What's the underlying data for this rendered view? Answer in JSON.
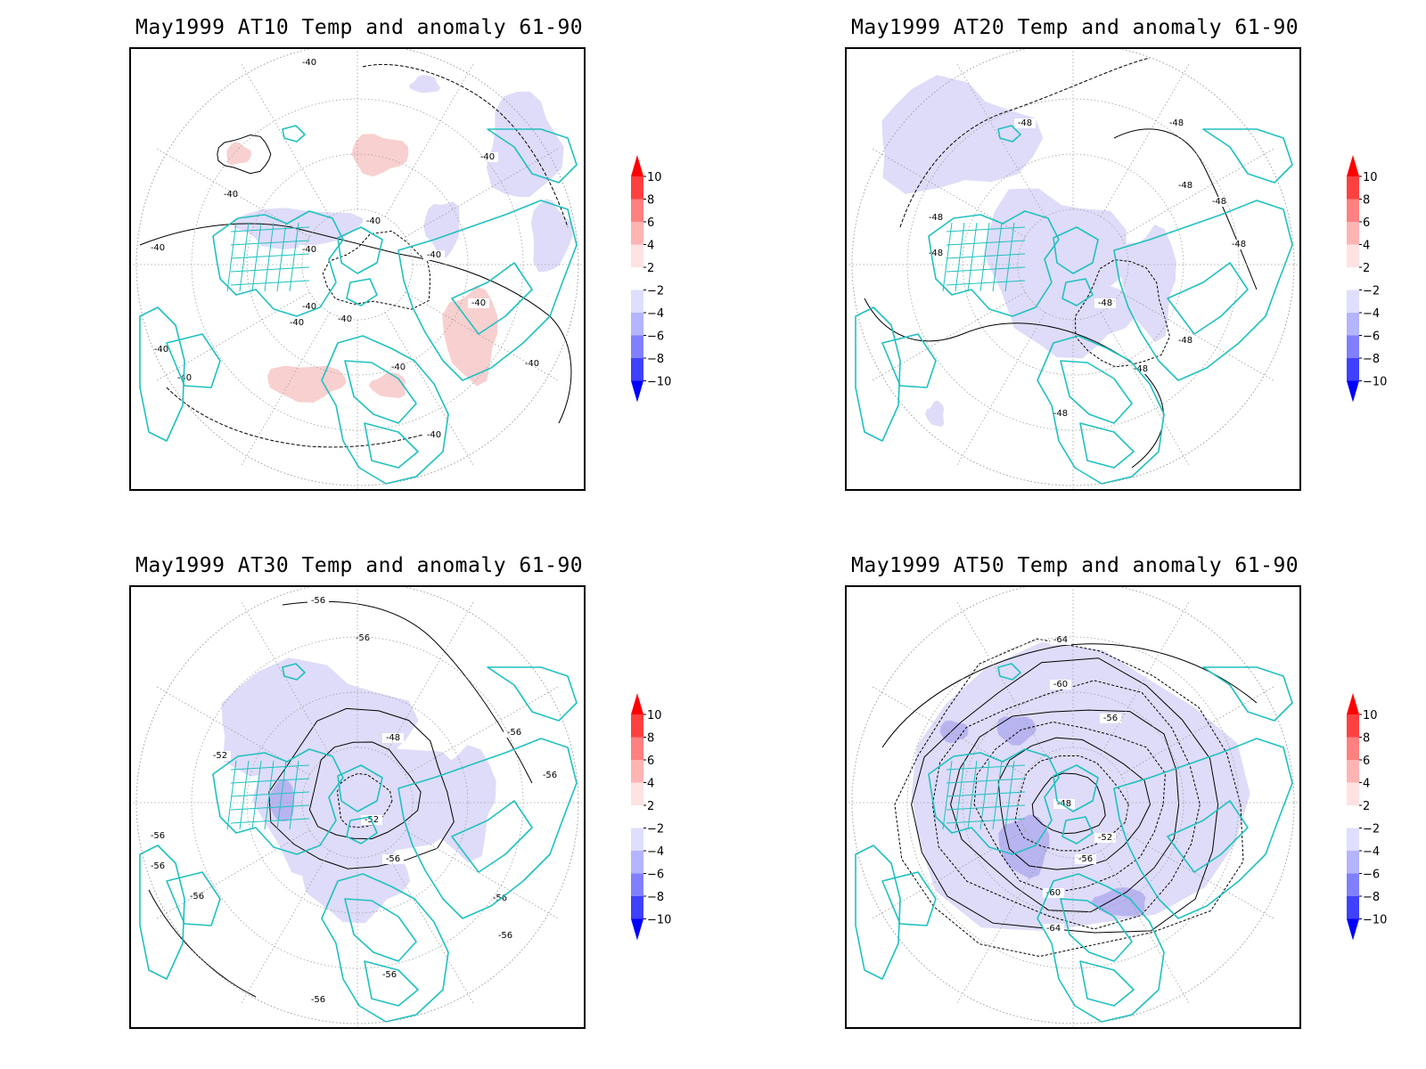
{
  "panels": [
    {
      "title": "May1999 AT10 Temp and anomaly 61-90",
      "contour_labels": [
        "-40",
        "-40",
        "-40",
        "-40",
        "-40",
        "-40",
        "-40",
        "-40",
        "-40",
        "-40",
        "-40",
        "-40",
        "-40",
        "-40",
        "-40",
        "-40"
      ],
      "anomaly": "mixed"
    },
    {
      "title": "May1999 AT20 Temp and anomaly 61-90",
      "contour_labels": [
        "-48",
        "-48",
        "-48",
        "-48",
        "-48",
        "-48",
        "-48",
        "-48",
        "-48",
        "-48",
        "-48"
      ],
      "anomaly": "cold"
    },
    {
      "title": "May1999 AT30 Temp and anomaly 61-90",
      "contour_labels": [
        "-56",
        "-56",
        "-56",
        "-52",
        "-48",
        "-52",
        "-56",
        "-56",
        "-56",
        "-56",
        "-56",
        "-56",
        "-56",
        "-56",
        "-56"
      ],
      "anomaly": "cold"
    },
    {
      "title": "May1999 AT50 Temp and anomaly 61-90",
      "contour_labels": [
        "-64",
        "-60",
        "-56",
        "-48",
        "-52",
        "-56",
        "-60",
        "-64"
      ],
      "anomaly": "strong-cold"
    }
  ],
  "colorbar": {
    "labels": [
      "10",
      "8",
      "6",
      "4",
      "2",
      "−2",
      "−4",
      "−6",
      "−8",
      "−10"
    ],
    "colors": [
      "#ff0000",
      "#ff4040",
      "#ff8080",
      "#ffb4b4",
      "#ffe2e2",
      "#ffffff",
      "#dedeff",
      "#b4b4ff",
      "#8080ff",
      "#4040ff",
      "#0000ff"
    ]
  },
  "colors": {
    "coastline": "#20c0c0",
    "warm_anomaly": "#f8d0d0",
    "cold_anomaly_light": "#dedcf8",
    "cold_anomaly_medium": "#b8b4f0",
    "contour": "#000000",
    "grid": "#a0a0a0"
  }
}
